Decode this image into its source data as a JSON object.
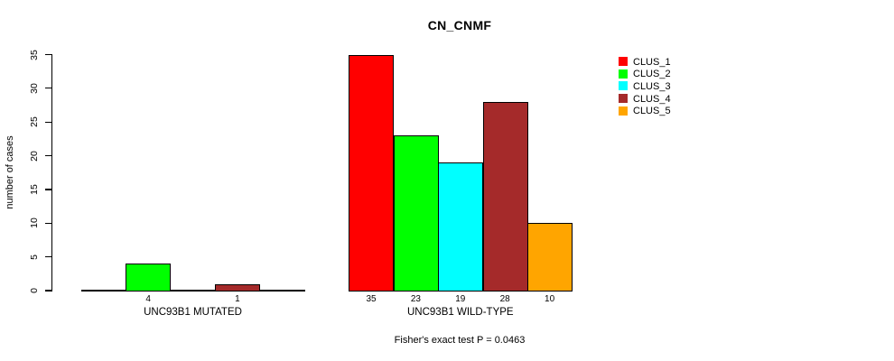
{
  "chart_data": {
    "type": "bar",
    "title": "CN_CNMF",
    "xlabel": "",
    "ylabel": "number of cases",
    "ylim": [
      0,
      35
    ],
    "yticks": [
      0,
      5,
      10,
      15,
      20,
      25,
      30,
      35
    ],
    "grid": false,
    "legend_position": "right",
    "show_zero_value_labels": false,
    "series": [
      {
        "name": "CLUS_1",
        "color": "#FF0000"
      },
      {
        "name": "CLUS_2",
        "color": "#00FF00"
      },
      {
        "name": "CLUS_3",
        "color": "#00FFFF"
      },
      {
        "name": "CLUS_4",
        "color": "#A52A2A"
      },
      {
        "name": "CLUS_5",
        "color": "#FFA500"
      }
    ],
    "groups": [
      {
        "label": "UNC93B1 MUTATED",
        "values": [
          0,
          4,
          0,
          1,
          0
        ],
        "value_labels": [
          "",
          "4",
          "",
          "1",
          ""
        ]
      },
      {
        "label": "UNC93B1 WILD-TYPE",
        "values": [
          35,
          23,
          19,
          28,
          10
        ],
        "value_labels": [
          "35",
          "23",
          "19",
          "28",
          "10"
        ]
      }
    ],
    "annotation": "Fisher's exact test P = 0.0463"
  },
  "colors": {
    "axis": "#000000",
    "text": "#000000",
    "background": "#ffffff"
  }
}
